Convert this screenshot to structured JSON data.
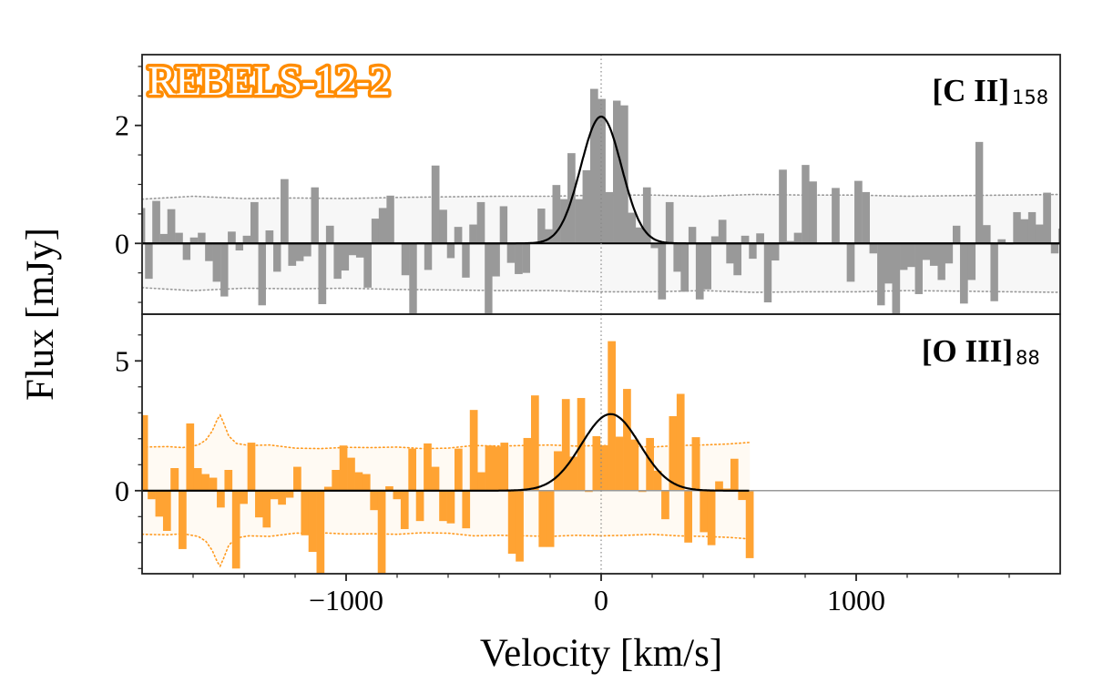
{
  "figure": {
    "badge": "REBELS-12-2",
    "badge_color": "#ff8c00",
    "xlabel": "Velocity [km/s]",
    "ylabel": "Flux [mJy]",
    "xlim": [
      -1800,
      1800
    ],
    "xticks": [
      -1000,
      0,
      1000
    ],
    "xtick_labels": [
      "−1000",
      "0",
      "1000"
    ],
    "x_minor_step": 200
  },
  "chart_data": [
    {
      "type": "bar",
      "panel": "top",
      "label": "[C II]",
      "label_sub": "158",
      "color": "#999999",
      "noise_fill": "#f7f7f7",
      "noise_line_color": "#999999",
      "ylim": [
        -1.2,
        3.2
      ],
      "yticks": [
        0,
        2
      ],
      "ytick_labels": [
        "0",
        "2"
      ],
      "y_minor_step": 0.5,
      "x": [
        -1804,
        -1774,
        -1745,
        -1715,
        -1686,
        -1656,
        -1626,
        -1597,
        -1567,
        -1538,
        -1508,
        -1478,
        -1449,
        -1419,
        -1390,
        -1360,
        -1330,
        -1301,
        -1271,
        -1242,
        -1212,
        -1182,
        -1153,
        -1123,
        -1094,
        -1064,
        -1034,
        -1005,
        -975,
        -946,
        -916,
        -886,
        -857,
        -827,
        -798,
        -768,
        -738,
        -709,
        -679,
        -650,
        -620,
        -590,
        -561,
        -531,
        -502,
        -472,
        -442,
        -413,
        -383,
        -354,
        -324,
        -294,
        -265,
        -235,
        -206,
        -176,
        -146,
        -117,
        -87,
        -58,
        -28,
        2,
        31,
        61,
        90,
        120,
        150,
        179,
        209,
        238,
        268,
        298,
        327,
        357,
        386,
        416,
        446,
        475,
        505,
        534,
        564,
        594,
        623,
        653,
        682,
        712,
        742,
        771,
        801,
        830,
        860,
        890,
        919,
        949,
        978,
        1008,
        1038,
        1067,
        1097,
        1126,
        1156,
        1186,
        1215,
        1245,
        1274,
        1304,
        1334,
        1363,
        1393,
        1422,
        1452,
        1482,
        1511,
        1541,
        1570,
        1600,
        1630,
        1659,
        1689,
        1718,
        1748,
        1778,
        1807
      ],
      "values": [
        0.6,
        -0.6,
        0.72,
        0.16,
        0.58,
        0.18,
        -0.28,
        0.1,
        0.18,
        -0.3,
        -0.65,
        -0.9,
        0.2,
        -0.12,
        0.13,
        0.7,
        -1.05,
        0.22,
        -0.48,
        1.09,
        -0.38,
        -0.3,
        -0.22,
        0.95,
        -1.03,
        0.3,
        -0.6,
        -0.46,
        -0.2,
        -0.24,
        -0.75,
        0.42,
        0.6,
        0.81,
        0.0,
        -0.54,
        -1.3,
        0.02,
        -0.45,
        1.32,
        0.57,
        -0.25,
        0.28,
        -0.58,
        0.32,
        0.7,
        -1.3,
        -0.56,
        0.63,
        -0.33,
        -0.52,
        -0.5,
        0.02,
        0.59,
        0.24,
        0.99,
        0.75,
        1.53,
        0.75,
        1.24,
        2.62,
        2.45,
        0.87,
        2.42,
        2.34,
        0.52,
        0.27,
        0.95,
        -0.08,
        -0.95,
        0.7,
        -0.48,
        -0.82,
        0.28,
        -0.95,
        -0.78,
        0.12,
        0.4,
        -0.34,
        -0.54,
        0.13,
        -0.26,
        0.17,
        -1.0,
        -0.29,
        1.25,
        0.04,
        0.18,
        1.33,
        1.05,
        0.0,
        0.01,
        0.94,
        0.02,
        -0.65,
        1.06,
        0.87,
        -0.17,
        -1.05,
        -0.68,
        -1.3,
        -0.45,
        -0.4,
        -0.86,
        -0.28,
        -0.38,
        -0.62,
        -0.34,
        0.3,
        -1.02,
        -0.62,
        1.72,
        0.31,
        -0.98,
        0.07,
        -0.02,
        0.53,
        0.41,
        0.53,
        0.32,
        0.86,
        -0.17,
        0.25
      ],
      "noise": [
        [
          -1800,
          0.75
        ],
        [
          -1600,
          0.8
        ],
        [
          -1400,
          0.76
        ],
        [
          -1200,
          0.77
        ],
        [
          -1000,
          0.76
        ],
        [
          -800,
          0.78
        ],
        [
          -600,
          0.79
        ],
        [
          -400,
          0.8
        ],
        [
          -200,
          0.8
        ],
        [
          0,
          0.82
        ],
        [
          200,
          0.82
        ],
        [
          400,
          0.8
        ],
        [
          600,
          0.83
        ],
        [
          800,
          0.82
        ],
        [
          1000,
          0.82
        ],
        [
          1200,
          0.8
        ],
        [
          1400,
          0.81
        ],
        [
          1600,
          0.82
        ],
        [
          1800,
          0.83
        ]
      ],
      "model": {
        "amplitude": 2.15,
        "center": 0,
        "fwhm": 188,
        "xrange": [
          -1800,
          1800
        ]
      }
    },
    {
      "type": "bar",
      "panel": "bottom",
      "label": "[O III]",
      "label_sub": "88",
      "color": "#ffa333",
      "noise_fill": "#fffaf3",
      "noise_line_color": "#ff9a1f",
      "ylim": [
        -3.2,
        6.8
      ],
      "yticks": [
        0,
        5
      ],
      "ytick_labels": [
        "0",
        "5"
      ],
      "y_minor_step": 1,
      "x": [
        -1793,
        -1763,
        -1733,
        -1703,
        -1673,
        -1642,
        -1612,
        -1582,
        -1552,
        -1522,
        -1492,
        -1462,
        -1432,
        -1402,
        -1372,
        -1342,
        -1312,
        -1282,
        -1252,
        -1222,
        -1192,
        -1162,
        -1132,
        -1101,
        -1071,
        -1041,
        -1011,
        -981,
        -951,
        -921,
        -891,
        -861,
        -831,
        -801,
        -771,
        -741,
        -711,
        -681,
        -651,
        -620,
        -590,
        -560,
        -530,
        -500,
        -470,
        -440,
        -410,
        -380,
        -350,
        -320,
        -290,
        -260,
        -230,
        -200,
        -170,
        -139,
        -109,
        -79,
        -49,
        -19,
        11,
        41,
        71,
        101,
        131,
        161,
        191,
        221,
        251,
        281,
        311,
        341,
        371,
        402,
        432,
        462,
        492,
        522,
        552,
        582
      ],
      "values": [
        2.91,
        -0.33,
        -1.0,
        -1.55,
        0.87,
        -2.25,
        2.59,
        0.87,
        0.64,
        0.5,
        -0.65,
        0.8,
        -3.0,
        -0.51,
        1.85,
        -1.03,
        -1.42,
        -0.33,
        -0.54,
        -0.27,
        0.92,
        -1.72,
        -2.36,
        -3.3,
        0.15,
        0.8,
        1.74,
        1.27,
        0.71,
        0.64,
        -0.75,
        -3.3,
        0.17,
        -0.33,
        -1.48,
        1.62,
        -1.17,
        1.82,
        0.92,
        -1.17,
        -1.26,
        1.62,
        -1.45,
        3.11,
        0.71,
        1.74,
        1.7,
        1.85,
        -2.43,
        -2.73,
        2.03,
        3.67,
        -2.17,
        -2.17,
        1.52,
        3.53,
        1.31,
        3.57,
        -0.05,
        2.1,
        1.75,
        5.76,
        2.08,
        3.92,
        1.97,
        -0.05,
        2.03,
        0.77,
        -1.1,
        2.87,
        3.73,
        -2.0,
        2.06,
        -1.6,
        -2.1,
        0.36,
        0.08,
        1.23,
        -0.36,
        -2.6
      ],
      "noise": [
        [
          -1800,
          1.68
        ],
        [
          -1700,
          1.7
        ],
        [
          -1640,
          1.66
        ],
        [
          -1580,
          1.76
        ],
        [
          -1550,
          1.95
        ],
        [
          -1525,
          2.3
        ],
        [
          -1505,
          2.75
        ],
        [
          -1494,
          2.91
        ],
        [
          -1480,
          2.6
        ],
        [
          -1460,
          2.1
        ],
        [
          -1430,
          1.82
        ],
        [
          -1380,
          1.74
        ],
        [
          -1300,
          1.76
        ],
        [
          -1200,
          1.64
        ],
        [
          -1100,
          1.62
        ],
        [
          -1000,
          1.67
        ],
        [
          -900,
          1.66
        ],
        [
          -800,
          1.68
        ],
        [
          -700,
          1.62
        ],
        [
          -600,
          1.64
        ],
        [
          -500,
          1.74
        ],
        [
          -400,
          1.72
        ],
        [
          -300,
          1.74
        ],
        [
          -200,
          1.76
        ],
        [
          -100,
          1.72
        ],
        [
          0,
          1.74
        ],
        [
          100,
          1.72
        ],
        [
          200,
          1.68
        ],
        [
          300,
          1.74
        ],
        [
          400,
          1.76
        ],
        [
          500,
          1.8
        ],
        [
          583,
          1.86
        ]
      ],
      "model": {
        "amplitude": 2.95,
        "center": 37,
        "fwhm": 269,
        "xrange": [
          -1800,
          583
        ]
      }
    }
  ]
}
